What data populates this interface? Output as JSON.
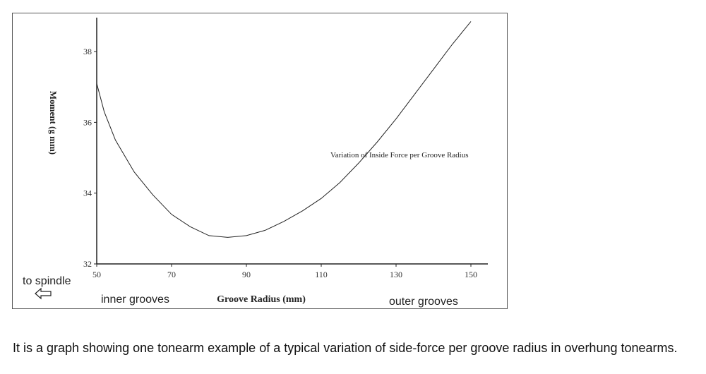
{
  "chart_data": {
    "type": "line",
    "title": "",
    "xlabel": "Groove Radius (mm)",
    "ylabel": "Moment (g mm)",
    "xlim": [
      50,
      150
    ],
    "ylim": [
      32,
      38.5
    ],
    "x_ticks": [
      50,
      70,
      90,
      110,
      130,
      150
    ],
    "y_ticks": [
      32,
      34,
      36,
      38
    ],
    "grid": false,
    "series": [
      {
        "name": "",
        "x": [
          50,
          52,
          55,
          60,
          65,
          70,
          75,
          80,
          85,
          90,
          95,
          100,
          105,
          110,
          115,
          120,
          125,
          130,
          135,
          140,
          145,
          150
        ],
        "y": [
          37.1,
          36.3,
          35.5,
          34.6,
          33.95,
          33.4,
          33.05,
          32.8,
          32.75,
          32.8,
          32.95,
          33.2,
          33.5,
          33.85,
          34.3,
          34.85,
          35.45,
          36.1,
          36.8,
          37.5,
          38.2,
          38.85
        ]
      }
    ],
    "annotations": [
      {
        "text": "Variation of Inside Force per Groove Radius"
      },
      {
        "text": "to spindle"
      },
      {
        "text": "inner grooves"
      },
      {
        "text": "outer grooves"
      }
    ]
  },
  "caption": "It is a graph showing one tonearm example of a typical variation of side-force per groove radius in overhung tonearms."
}
